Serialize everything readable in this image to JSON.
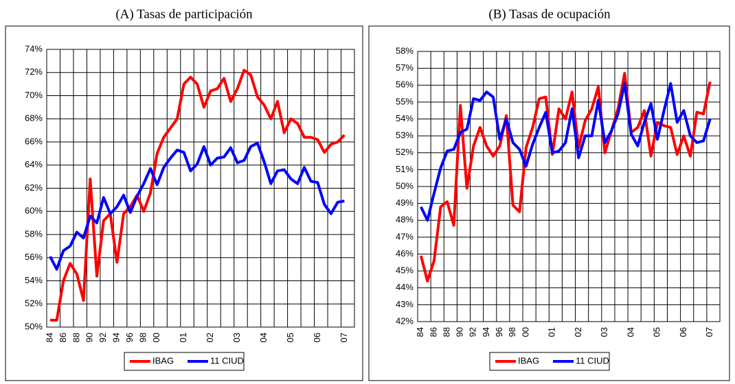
{
  "chart_data": [
    {
      "type": "line",
      "title": "(A) Tasas de participación",
      "categories": [
        "84",
        null,
        "86",
        null,
        "88",
        null,
        "90",
        null,
        "92",
        null,
        "94",
        null,
        "96",
        null,
        "98",
        null,
        "00",
        null,
        null,
        null,
        "01",
        null,
        null,
        null,
        "02",
        null,
        null,
        null,
        "03",
        null,
        null,
        null,
        "04",
        null,
        null,
        null,
        "05",
        null,
        null,
        null,
        "06",
        null,
        null,
        null,
        "07"
      ],
      "series": [
        {
          "name": "IBAG",
          "color": "#ff0000",
          "values": [
            50.6,
            50.6,
            54.0,
            55.5,
            54.6,
            52.3,
            62.8,
            54.4,
            59.2,
            59.8,
            55.6,
            59.8,
            60.4,
            61.4,
            60.0,
            61.6,
            65.0,
            66.4,
            67.2,
            68.0,
            71.0,
            71.6,
            71.0,
            69.0,
            70.4,
            70.6,
            71.5,
            69.5,
            70.6,
            72.2,
            71.8,
            69.9,
            69.2,
            68.0,
            69.5,
            66.8,
            68.0,
            67.6,
            66.4,
            66.4,
            66.2,
            65.1,
            65.8,
            66.0,
            66.6
          ]
        },
        {
          "name": "11 CIUD",
          "color": "#0000ff",
          "values": [
            56.1,
            55.0,
            56.6,
            57.0,
            58.2,
            57.7,
            59.6,
            59.0,
            61.2,
            59.8,
            60.4,
            61.4,
            59.9,
            61.3,
            62.4,
            63.7,
            62.3,
            63.8,
            64.6,
            65.3,
            65.1,
            63.5,
            64.1,
            65.6,
            64.0,
            64.6,
            64.7,
            65.5,
            64.2,
            64.4,
            65.6,
            65.9,
            64.3,
            62.4,
            63.5,
            63.6,
            62.8,
            62.4,
            63.8,
            62.6,
            62.5,
            60.6,
            59.8,
            60.8,
            60.9
          ]
        }
      ],
      "ylim": [
        50,
        74
      ],
      "yticks": [
        {
          "value": 50,
          "label": "50%"
        },
        {
          "value": 52,
          "label": "52%"
        },
        {
          "value": 54,
          "label": "54%"
        },
        {
          "value": 56,
          "label": "56%"
        },
        {
          "value": 58,
          "label": "58%"
        },
        {
          "value": 60,
          "label": "60%"
        },
        {
          "value": 62,
          "label": "62%"
        },
        {
          "value": 64,
          "label": "64%"
        },
        {
          "value": 66,
          "label": "66%"
        },
        {
          "value": 68,
          "label": "68%"
        },
        {
          "value": 70,
          "label": "70%"
        },
        {
          "value": 72,
          "label": "72%"
        },
        {
          "value": 74,
          "label": "74%"
        }
      ],
      "grid": true
    },
    {
      "type": "line",
      "title": "(B) Tasas de ocupación",
      "categories": [
        "84",
        null,
        "86",
        null,
        "88",
        null,
        "90",
        null,
        "92",
        null,
        "94",
        null,
        "96",
        null,
        "98",
        null,
        "00",
        null,
        null,
        null,
        "01",
        null,
        null,
        null,
        "02",
        null,
        null,
        null,
        "03",
        null,
        null,
        null,
        "04",
        null,
        null,
        null,
        "05",
        null,
        null,
        null,
        "06",
        null,
        null,
        null,
        "07"
      ],
      "series": [
        {
          "name": "IBAG",
          "color": "#ff0000",
          "values": [
            45.9,
            44.4,
            45.6,
            48.8,
            49.1,
            47.7,
            54.8,
            49.9,
            52.4,
            53.5,
            52.4,
            51.8,
            52.4,
            54.2,
            48.9,
            48.5,
            52.3,
            53.5,
            55.2,
            55.3,
            51.9,
            54.6,
            54.0,
            55.6,
            52.3,
            53.9,
            54.6,
            55.9,
            52.0,
            53.3,
            54.6,
            56.7,
            53.2,
            53.5,
            54.5,
            51.8,
            53.8,
            53.6,
            53.5,
            51.9,
            53.0,
            51.8,
            54.4,
            54.3,
            56.2
          ]
        },
        {
          "name": "11 CIUD",
          "color": "#0000ff",
          "values": [
            48.8,
            48.0,
            49.6,
            51.1,
            52.1,
            52.2,
            53.2,
            53.4,
            55.2,
            55.1,
            55.6,
            55.3,
            52.8,
            54.0,
            52.6,
            52.2,
            51.2,
            52.5,
            53.5,
            54.4,
            52.0,
            52.1,
            52.6,
            54.6,
            51.7,
            53.0,
            53.0,
            55.1,
            52.6,
            53.3,
            54.3,
            56.1,
            53.1,
            52.4,
            53.8,
            54.9,
            52.8,
            54.5,
            56.1,
            53.8,
            54.5,
            53.0,
            52.6,
            52.7,
            54.0
          ]
        }
      ],
      "ylim": [
        42,
        58
      ],
      "yticks": [
        {
          "value": 42,
          "label": "42%"
        },
        {
          "value": 43,
          "label": "43%"
        },
        {
          "value": 44,
          "label": "44%"
        },
        {
          "value": 45,
          "label": "45%"
        },
        {
          "value": 46,
          "label": "46%"
        },
        {
          "value": 47,
          "label": "47%"
        },
        {
          "value": 48,
          "label": "48%"
        },
        {
          "value": 49,
          "label": "49%"
        },
        {
          "value": 50,
          "label": "50%"
        },
        {
          "value": 51,
          "label": "51%"
        },
        {
          "value": 52,
          "label": "52%"
        },
        {
          "value": 53,
          "label": "53%"
        },
        {
          "value": 54,
          "label": "54%"
        },
        {
          "value": 55,
          "label": "55%"
        },
        {
          "value": 56,
          "label": "56%"
        },
        {
          "value": 57,
          "label": "57%"
        },
        {
          "value": 58,
          "label": "58%"
        }
      ],
      "grid": true
    }
  ]
}
